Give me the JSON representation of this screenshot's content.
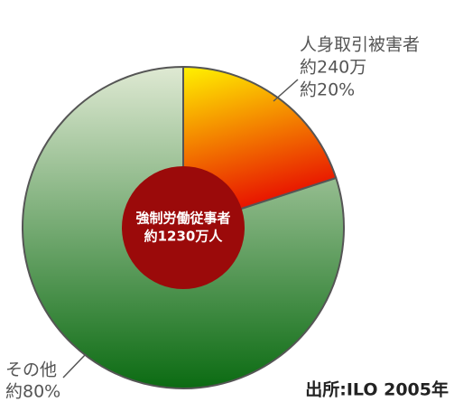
{
  "chart_data": {
    "type": "pie",
    "categories": [
      "人身取引被害者",
      "その他"
    ],
    "values": [
      20,
      80
    ],
    "value_labels": [
      "約20%",
      "約80%"
    ],
    "slice_notes": [
      "約240万"
    ],
    "center_label": [
      "強制労働従事者",
      "約1230万人"
    ],
    "colors": [
      [
        "#fff200",
        "#e60000"
      ],
      [
        "#dfe9d3",
        "#0b6b12"
      ]
    ],
    "center_color": "#9b0a0a",
    "source": "出所:ILO 2005年"
  }
}
